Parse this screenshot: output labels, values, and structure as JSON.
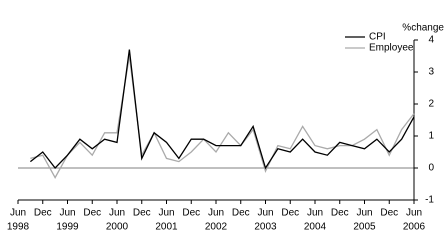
{
  "chart_data": {
    "type": "line",
    "y_axis_label": "%change",
    "x": [
      1998.75,
      1999.0,
      1999.25,
      1999.5,
      1999.75,
      2000.0,
      2000.25,
      2000.5,
      2000.75,
      2001.0,
      2001.25,
      2001.5,
      2001.75,
      2002.0,
      2002.25,
      2002.5,
      2002.75,
      2003.0,
      2003.25,
      2003.5,
      2003.75,
      2004.0,
      2004.25,
      2004.5,
      2004.75,
      2005.0,
      2005.25,
      2005.5,
      2005.75,
      2006.0,
      2006.25,
      2006.5
    ],
    "series": [
      {
        "name": "CPI",
        "color": "#000000",
        "values": [
          0.2,
          0.5,
          0.0,
          0.4,
          0.9,
          0.6,
          0.9,
          0.8,
          3.7,
          0.3,
          1.1,
          0.8,
          0.3,
          0.9,
          0.9,
          0.7,
          0.7,
          0.7,
          1.3,
          0.0,
          0.6,
          0.5,
          0.9,
          0.5,
          0.4,
          0.8,
          0.7,
          0.6,
          0.9,
          0.5,
          0.9,
          1.6
        ]
      },
      {
        "name": "Employee",
        "color": "#aaaaaa",
        "values": [
          0.3,
          0.4,
          -0.3,
          0.4,
          0.8,
          0.4,
          1.1,
          1.1,
          3.5,
          0.4,
          1.1,
          0.3,
          0.2,
          0.5,
          0.9,
          0.5,
          1.1,
          0.7,
          1.2,
          -0.1,
          0.7,
          0.6,
          1.3,
          0.7,
          0.6,
          0.7,
          0.7,
          0.9,
          1.2,
          0.4,
          1.2,
          1.7
        ]
      }
    ],
    "xlim": [
      1998.5,
      2006.5
    ],
    "xticks": [
      {
        "value": 1998.5,
        "label": "Jun"
      },
      {
        "value": 1999.0,
        "label": "Dec"
      },
      {
        "value": 1999.5,
        "label": "Jun"
      },
      {
        "value": 2000.0,
        "label": "Dec"
      },
      {
        "value": 2000.5,
        "label": "Jun"
      },
      {
        "value": 2001.0,
        "label": "Dec"
      },
      {
        "value": 2001.5,
        "label": "Jun"
      },
      {
        "value": 2002.0,
        "label": "Dec"
      },
      {
        "value": 2002.5,
        "label": "Jun"
      },
      {
        "value": 2003.0,
        "label": "Dec"
      },
      {
        "value": 2003.5,
        "label": "Jun"
      },
      {
        "value": 2004.0,
        "label": "Dec"
      },
      {
        "value": 2004.5,
        "label": "Jun"
      },
      {
        "value": 2005.0,
        "label": "Dec"
      },
      {
        "value": 2005.5,
        "label": "Jun"
      },
      {
        "value": 2006.0,
        "label": "Dec"
      },
      {
        "value": 2006.5,
        "label": "Jun"
      }
    ],
    "xtick_years": [
      {
        "value": 1998.5,
        "label": "1998"
      },
      {
        "value": 1999.5,
        "label": "1999"
      },
      {
        "value": 2000.5,
        "label": "2000"
      },
      {
        "value": 2001.5,
        "label": "2001"
      },
      {
        "value": 2002.5,
        "label": "2002"
      },
      {
        "value": 2003.5,
        "label": "2003"
      },
      {
        "value": 2004.5,
        "label": "2004"
      },
      {
        "value": 2005.5,
        "label": "2005"
      },
      {
        "value": 2006.5,
        "label": "2006"
      }
    ],
    "ylim": [
      -1,
      4
    ],
    "yticks": [
      -1,
      0,
      1,
      2,
      3,
      4
    ],
    "legend": "top-right"
  }
}
